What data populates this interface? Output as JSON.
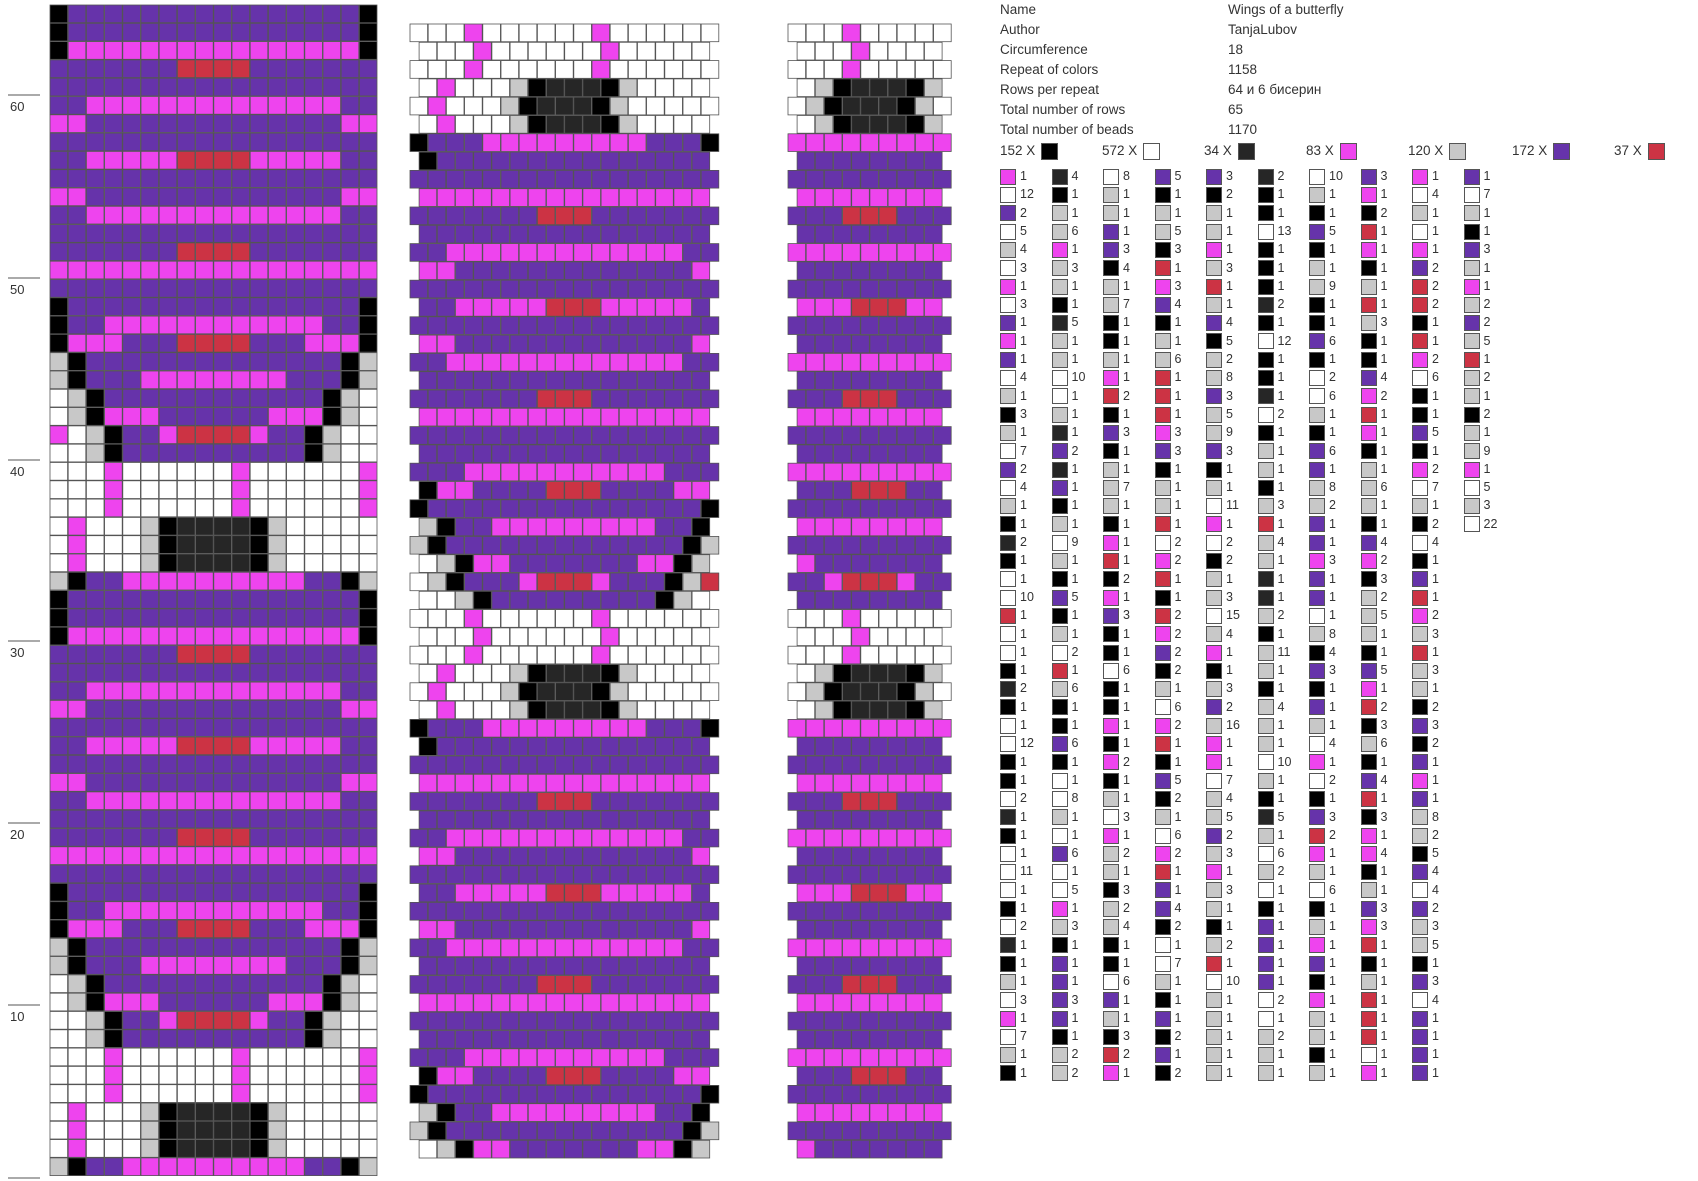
{
  "info": [
    {
      "key": "Name",
      "value": "Wings of a butterfly"
    },
    {
      "key": "Author",
      "value": "TanjaLubov"
    },
    {
      "key": "Circumference",
      "value": "18"
    },
    {
      "key": "Repeat of colors",
      "value": "1158"
    },
    {
      "key": "Rows per repeat",
      "value": "64 и 6 бисерин"
    },
    {
      "key": "Total number of rows",
      "value": "65"
    },
    {
      "key": "Total number of beads",
      "value": "1170"
    }
  ],
  "palette": [
    {
      "label": "152 X",
      "color": "#000000"
    },
    {
      "label": "572 X",
      "color": "#ffffff"
    },
    {
      "label": "34 X",
      "color": "#262626"
    },
    {
      "label": "83 X",
      "color": "#ee44ee"
    },
    {
      "label": "120 X",
      "color": "#c8c8c8"
    },
    {
      "label": "172 X",
      "color": "#6633aa"
    },
    {
      "label": "37 X",
      "color": "#cc3344"
    }
  ],
  "row_labels": [
    "60",
    "50",
    "40",
    "30",
    "20",
    "10"
  ],
  "sequence_columns": [
    [
      [
        3,
        1
      ],
      [
        1,
        12
      ],
      [
        5,
        2
      ],
      [
        1,
        5
      ],
      [
        4,
        4
      ],
      [
        1,
        3
      ],
      [
        3,
        1
      ],
      [
        1,
        3
      ],
      [
        5,
        1
      ],
      [
        3,
        1
      ],
      [
        5,
        1
      ],
      [
        1,
        4
      ],
      [
        4,
        1
      ],
      [
        0,
        3
      ],
      [
        4,
        1
      ],
      [
        1,
        7
      ],
      [
        5,
        2
      ],
      [
        1,
        4
      ],
      [
        4,
        1
      ],
      [
        0,
        1
      ],
      [
        2,
        2
      ],
      [
        0,
        1
      ],
      [
        1,
        1
      ],
      [
        1,
        10
      ],
      [
        6,
        1
      ],
      [
        1,
        1
      ],
      [
        1,
        1
      ],
      [
        0,
        1
      ],
      [
        2,
        2
      ],
      [
        0,
        1
      ],
      [
        1,
        1
      ],
      [
        1,
        12
      ],
      [
        0,
        1
      ],
      [
        0,
        1
      ],
      [
        1,
        2
      ],
      [
        2,
        1
      ],
      [
        0,
        1
      ],
      [
        1,
        1
      ],
      [
        1,
        11
      ],
      [
        1,
        1
      ],
      [
        0,
        1
      ],
      [
        1,
        2
      ],
      [
        2,
        1
      ],
      [
        0,
        1
      ],
      [
        4,
        1
      ],
      [
        1,
        3
      ],
      [
        3,
        1
      ],
      [
        1,
        7
      ],
      [
        4,
        1
      ],
      [
        0,
        1
      ]
    ],
    [
      [
        2,
        4
      ],
      [
        0,
        1
      ],
      [
        4,
        1
      ],
      [
        4,
        6
      ],
      [
        3,
        1
      ],
      [
        4,
        3
      ],
      [
        4,
        1
      ],
      [
        0,
        1
      ],
      [
        2,
        5
      ],
      [
        4,
        1
      ],
      [
        4,
        1
      ],
      [
        1,
        10
      ],
      [
        1,
        1
      ],
      [
        4,
        1
      ],
      [
        2,
        1
      ],
      [
        5,
        2
      ],
      [
        2,
        1
      ],
      [
        5,
        1
      ],
      [
        0,
        1
      ],
      [
        4,
        1
      ],
      [
        1,
        9
      ],
      [
        4,
        1
      ],
      [
        0,
        1
      ],
      [
        5,
        5
      ],
      [
        0,
        1
      ],
      [
        4,
        1
      ],
      [
        1,
        2
      ],
      [
        6,
        1
      ],
      [
        4,
        6
      ],
      [
        0,
        1
      ],
      [
        0,
        1
      ],
      [
        5,
        6
      ],
      [
        0,
        1
      ],
      [
        1,
        1
      ],
      [
        1,
        8
      ],
      [
        4,
        1
      ],
      [
        1,
        1
      ],
      [
        5,
        6
      ],
      [
        1,
        1
      ],
      [
        1,
        5
      ],
      [
        3,
        1
      ],
      [
        4,
        3
      ],
      [
        0,
        1
      ],
      [
        5,
        1
      ],
      [
        5,
        1
      ],
      [
        5,
        3
      ],
      [
        5,
        1
      ],
      [
        0,
        1
      ],
      [
        4,
        2
      ],
      [
        4,
        2
      ]
    ],
    [
      [
        1,
        8
      ],
      [
        4,
        1
      ],
      [
        4,
        1
      ],
      [
        5,
        1
      ],
      [
        5,
        3
      ],
      [
        0,
        4
      ],
      [
        4,
        1
      ],
      [
        4,
        7
      ],
      [
        0,
        1
      ],
      [
        0,
        1
      ],
      [
        4,
        1
      ],
      [
        3,
        1
      ],
      [
        6,
        2
      ],
      [
        0,
        1
      ],
      [
        5,
        3
      ],
      [
        0,
        1
      ],
      [
        4,
        1
      ],
      [
        4,
        7
      ],
      [
        4,
        1
      ],
      [
        0,
        1
      ],
      [
        3,
        1
      ],
      [
        6,
        1
      ],
      [
        0,
        2
      ],
      [
        3,
        1
      ],
      [
        5,
        3
      ],
      [
        0,
        1
      ],
      [
        0,
        1
      ],
      [
        1,
        6
      ],
      [
        0,
        1
      ],
      [
        0,
        1
      ],
      [
        3,
        1
      ],
      [
        0,
        1
      ],
      [
        3,
        2
      ],
      [
        0,
        1
      ],
      [
        4,
        1
      ],
      [
        1,
        3
      ],
      [
        3,
        1
      ],
      [
        4,
        2
      ],
      [
        4,
        1
      ],
      [
        0,
        3
      ],
      [
        4,
        2
      ],
      [
        4,
        4
      ],
      [
        0,
        1
      ],
      [
        0,
        1
      ],
      [
        1,
        6
      ],
      [
        5,
        1
      ],
      [
        4,
        1
      ],
      [
        0,
        3
      ],
      [
        6,
        2
      ],
      [
        3,
        1
      ]
    ],
    [
      [
        5,
        5
      ],
      [
        0,
        1
      ],
      [
        4,
        1
      ],
      [
        4,
        5
      ],
      [
        0,
        3
      ],
      [
        6,
        1
      ],
      [
        3,
        3
      ],
      [
        5,
        4
      ],
      [
        0,
        1
      ],
      [
        4,
        1
      ],
      [
        4,
        6
      ],
      [
        6,
        1
      ],
      [
        6,
        1
      ],
      [
        6,
        1
      ],
      [
        3,
        3
      ],
      [
        5,
        3
      ],
      [
        0,
        1
      ],
      [
        4,
        1
      ],
      [
        4,
        1
      ],
      [
        6,
        1
      ],
      [
        1,
        2
      ],
      [
        3,
        2
      ],
      [
        6,
        1
      ],
      [
        0,
        1
      ],
      [
        6,
        2
      ],
      [
        3,
        2
      ],
      [
        5,
        2
      ],
      [
        0,
        2
      ],
      [
        4,
        1
      ],
      [
        1,
        6
      ],
      [
        3,
        2
      ],
      [
        6,
        1
      ],
      [
        0,
        1
      ],
      [
        5,
        5
      ],
      [
        0,
        2
      ],
      [
        4,
        1
      ],
      [
        1,
        6
      ],
      [
        3,
        2
      ],
      [
        6,
        1
      ],
      [
        5,
        1
      ],
      [
        5,
        4
      ],
      [
        0,
        2
      ],
      [
        1,
        1
      ],
      [
        1,
        7
      ],
      [
        4,
        1
      ],
      [
        0,
        1
      ],
      [
        5,
        1
      ],
      [
        0,
        2
      ],
      [
        5,
        1
      ],
      [
        0,
        2
      ]
    ],
    [
      [
        5,
        3
      ],
      [
        0,
        2
      ],
      [
        4,
        1
      ],
      [
        4,
        1
      ],
      [
        3,
        1
      ],
      [
        4,
        3
      ],
      [
        6,
        1
      ],
      [
        4,
        1
      ],
      [
        5,
        4
      ],
      [
        0,
        5
      ],
      [
        4,
        2
      ],
      [
        4,
        8
      ],
      [
        5,
        3
      ],
      [
        4,
        5
      ],
      [
        4,
        9
      ],
      [
        5,
        3
      ],
      [
        0,
        1
      ],
      [
        4,
        1
      ],
      [
        1,
        11
      ],
      [
        3,
        1
      ],
      [
        1,
        2
      ],
      [
        0,
        2
      ],
      [
        4,
        1
      ],
      [
        4,
        3
      ],
      [
        1,
        15
      ],
      [
        4,
        4
      ],
      [
        3,
        1
      ],
      [
        0,
        1
      ],
      [
        4,
        3
      ],
      [
        5,
        2
      ],
      [
        4,
        16
      ],
      [
        3,
        1
      ],
      [
        3,
        1
      ],
      [
        1,
        7
      ],
      [
        4,
        4
      ],
      [
        4,
        5
      ],
      [
        5,
        2
      ],
      [
        4,
        3
      ],
      [
        3,
        1
      ],
      [
        4,
        3
      ],
      [
        4,
        1
      ],
      [
        0,
        1
      ],
      [
        4,
        2
      ],
      [
        6,
        1
      ],
      [
        1,
        10
      ],
      [
        4,
        1
      ],
      [
        4,
        1
      ],
      [
        4,
        1
      ],
      [
        4,
        1
      ],
      [
        4,
        1
      ]
    ],
    [
      [
        2,
        2
      ],
      [
        0,
        1
      ],
      [
        0,
        1
      ],
      [
        1,
        13
      ],
      [
        0,
        1
      ],
      [
        0,
        1
      ],
      [
        0,
        1
      ],
      [
        2,
        2
      ],
      [
        0,
        1
      ],
      [
        1,
        12
      ],
      [
        0,
        1
      ],
      [
        0,
        1
      ],
      [
        2,
        1
      ],
      [
        1,
        2
      ],
      [
        0,
        1
      ],
      [
        4,
        1
      ],
      [
        4,
        1
      ],
      [
        0,
        1
      ],
      [
        4,
        3
      ],
      [
        6,
        1
      ],
      [
        4,
        4
      ],
      [
        4,
        1
      ],
      [
        2,
        1
      ],
      [
        2,
        1
      ],
      [
        4,
        2
      ],
      [
        0,
        1
      ],
      [
        4,
        11
      ],
      [
        4,
        1
      ],
      [
        0,
        1
      ],
      [
        4,
        4
      ],
      [
        4,
        1
      ],
      [
        4,
        1
      ],
      [
        1,
        10
      ],
      [
        4,
        1
      ],
      [
        0,
        1
      ],
      [
        2,
        5
      ],
      [
        4,
        1
      ],
      [
        1,
        6
      ],
      [
        4,
        2
      ],
      [
        1,
        1
      ],
      [
        0,
        1
      ],
      [
        5,
        1
      ],
      [
        5,
        1
      ],
      [
        5,
        1
      ],
      [
        5,
        1
      ],
      [
        1,
        2
      ],
      [
        1,
        1
      ],
      [
        4,
        2
      ],
      [
        4,
        1
      ],
      [
        4,
        1
      ]
    ],
    [
      [
        1,
        10
      ],
      [
        4,
        1
      ],
      [
        0,
        1
      ],
      [
        5,
        5
      ],
      [
        0,
        1
      ],
      [
        4,
        1
      ],
      [
        4,
        9
      ],
      [
        0,
        1
      ],
      [
        0,
        1
      ],
      [
        5,
        6
      ],
      [
        0,
        1
      ],
      [
        1,
        2
      ],
      [
        1,
        6
      ],
      [
        4,
        1
      ],
      [
        0,
        1
      ],
      [
        5,
        6
      ],
      [
        5,
        1
      ],
      [
        4,
        8
      ],
      [
        4,
        2
      ],
      [
        5,
        1
      ],
      [
        5,
        1
      ],
      [
        3,
        3
      ],
      [
        5,
        1
      ],
      [
        5,
        1
      ],
      [
        1,
        1
      ],
      [
        4,
        8
      ],
      [
        0,
        4
      ],
      [
        5,
        3
      ],
      [
        0,
        1
      ],
      [
        5,
        1
      ],
      [
        4,
        1
      ],
      [
        1,
        4
      ],
      [
        3,
        1
      ],
      [
        1,
        2
      ],
      [
        0,
        1
      ],
      [
        5,
        3
      ],
      [
        6,
        2
      ],
      [
        3,
        1
      ],
      [
        4,
        1
      ],
      [
        1,
        6
      ],
      [
        0,
        1
      ],
      [
        4,
        1
      ],
      [
        3,
        1
      ],
      [
        5,
        1
      ],
      [
        0,
        1
      ],
      [
        3,
        1
      ],
      [
        4,
        1
      ],
      [
        4,
        1
      ],
      [
        0,
        1
      ],
      [
        4,
        1
      ]
    ],
    [
      [
        5,
        3
      ],
      [
        3,
        1
      ],
      [
        0,
        2
      ],
      [
        6,
        1
      ],
      [
        3,
        1
      ],
      [
        0,
        1
      ],
      [
        4,
        1
      ],
      [
        6,
        1
      ],
      [
        4,
        3
      ],
      [
        0,
        1
      ],
      [
        0,
        1
      ],
      [
        5,
        4
      ],
      [
        3,
        2
      ],
      [
        6,
        1
      ],
      [
        3,
        1
      ],
      [
        0,
        1
      ],
      [
        4,
        1
      ],
      [
        4,
        6
      ],
      [
        4,
        1
      ],
      [
        0,
        1
      ],
      [
        5,
        4
      ],
      [
        3,
        2
      ],
      [
        0,
        3
      ],
      [
        4,
        2
      ],
      [
        4,
        5
      ],
      [
        4,
        1
      ],
      [
        0,
        1
      ],
      [
        5,
        5
      ],
      [
        3,
        1
      ],
      [
        6,
        2
      ],
      [
        0,
        3
      ],
      [
        4,
        6
      ],
      [
        0,
        1
      ],
      [
        5,
        4
      ],
      [
        6,
        1
      ],
      [
        0,
        3
      ],
      [
        3,
        1
      ],
      [
        3,
        4
      ],
      [
        0,
        1
      ],
      [
        4,
        1
      ],
      [
        5,
        3
      ],
      [
        3,
        3
      ],
      [
        6,
        1
      ],
      [
        0,
        1
      ],
      [
        4,
        1
      ],
      [
        6,
        1
      ],
      [
        6,
        1
      ],
      [
        6,
        1
      ],
      [
        1,
        1
      ],
      [
        3,
        1
      ]
    ],
    [
      [
        3,
        1
      ],
      [
        1,
        4
      ],
      [
        4,
        1
      ],
      [
        1,
        1
      ],
      [
        3,
        1
      ],
      [
        5,
        2
      ],
      [
        6,
        2
      ],
      [
        6,
        2
      ],
      [
        0,
        1
      ],
      [
        6,
        1
      ],
      [
        3,
        2
      ],
      [
        1,
        6
      ],
      [
        0,
        1
      ],
      [
        0,
        1
      ],
      [
        5,
        5
      ],
      [
        0,
        1
      ],
      [
        3,
        2
      ],
      [
        1,
        7
      ],
      [
        4,
        1
      ],
      [
        0,
        2
      ],
      [
        1,
        4
      ],
      [
        0,
        1
      ],
      [
        5,
        1
      ],
      [
        6,
        1
      ],
      [
        3,
        2
      ],
      [
        4,
        3
      ],
      [
        6,
        1
      ],
      [
        4,
        3
      ],
      [
        4,
        1
      ],
      [
        0,
        2
      ],
      [
        5,
        3
      ],
      [
        0,
        2
      ],
      [
        5,
        1
      ],
      [
        3,
        1
      ],
      [
        5,
        1
      ],
      [
        4,
        8
      ],
      [
        4,
        2
      ],
      [
        0,
        5
      ],
      [
        5,
        4
      ],
      [
        1,
        4
      ],
      [
        5,
        2
      ],
      [
        4,
        3
      ],
      [
        4,
        5
      ],
      [
        0,
        1
      ],
      [
        5,
        3
      ],
      [
        1,
        4
      ],
      [
        5,
        1
      ],
      [
        5,
        1
      ],
      [
        5,
        1
      ],
      [
        5,
        1
      ]
    ],
    [
      [
        5,
        1
      ],
      [
        1,
        7
      ],
      [
        4,
        1
      ],
      [
        0,
        1
      ],
      [
        5,
        3
      ],
      [
        4,
        1
      ],
      [
        3,
        1
      ],
      [
        4,
        2
      ],
      [
        5,
        2
      ],
      [
        4,
        5
      ],
      [
        6,
        1
      ],
      [
        4,
        2
      ],
      [
        4,
        1
      ],
      [
        0,
        2
      ],
      [
        4,
        1
      ],
      [
        4,
        9
      ],
      [
        3,
        1
      ],
      [
        1,
        5
      ],
      [
        4,
        3
      ],
      [
        1,
        22
      ]
    ]
  ]
}
